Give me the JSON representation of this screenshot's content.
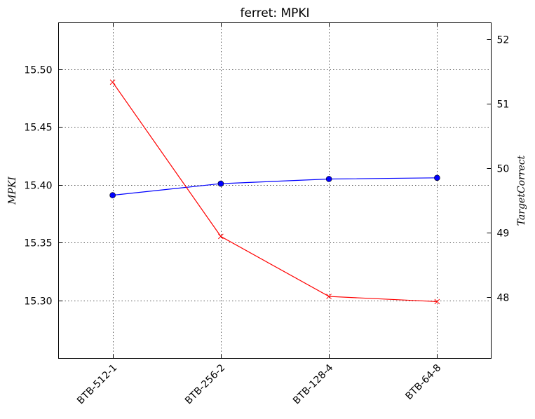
{
  "chart_data": {
    "type": "line",
    "title": "ferret: MPKI",
    "categories": [
      "BTB-512-1",
      "BTB-256-2",
      "BTB-128-4",
      "BTB-64-8"
    ],
    "left_axis": {
      "label": "MPKI",
      "ylim": [
        15.25,
        15.54
      ],
      "ticks": [
        "15.30",
        "15.35",
        "15.40",
        "15.45",
        "15.50"
      ]
    },
    "right_axis": {
      "label": "TargetCorrect",
      "ylim": [
        47.05,
        52.25
      ],
      "ticks": [
        "48",
        "49",
        "50",
        "51",
        "52"
      ]
    },
    "series": [
      {
        "axis": "left",
        "color": "#0000ff",
        "marker": "circle",
        "values": [
          15.391,
          15.401,
          15.405,
          15.406
        ]
      },
      {
        "axis": "right",
        "color": "#ff0000",
        "marker": "x",
        "values": [
          51.33,
          48.94,
          48.01,
          47.93
        ]
      }
    ],
    "grid": true
  }
}
